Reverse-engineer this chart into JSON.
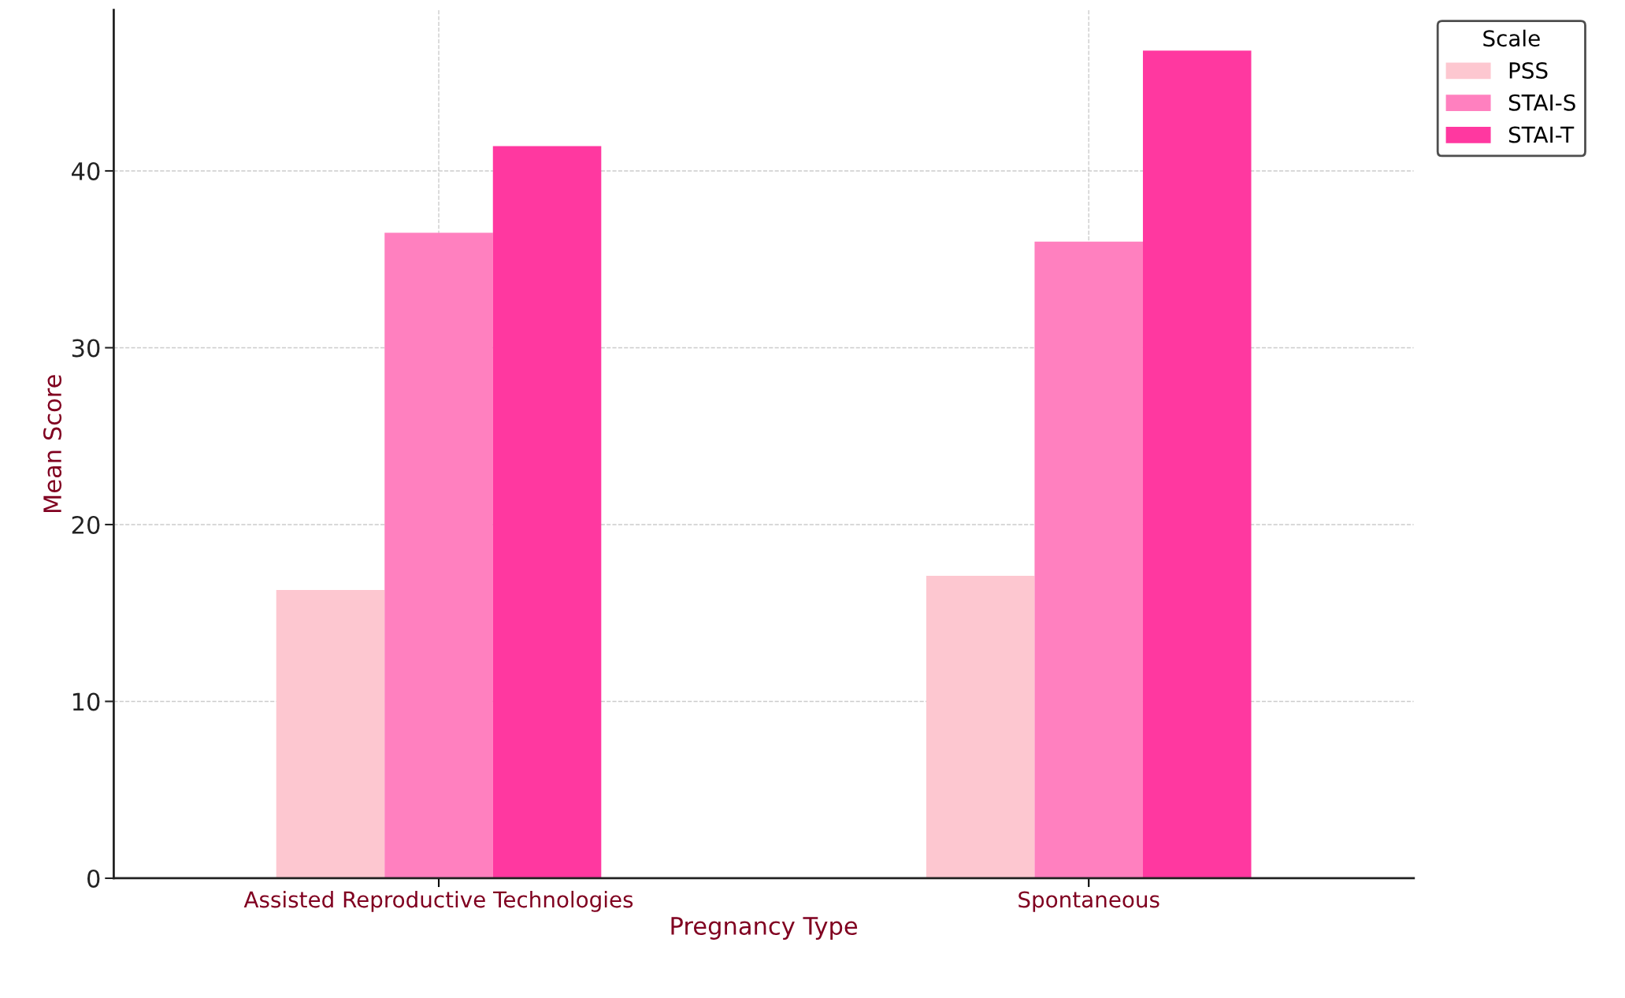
{
  "chart_data": {
    "type": "bar",
    "xlabel": "Pregnancy Type",
    "ylabel": "Mean Score",
    "legend_title": "Scale",
    "categories": [
      "Assisted Reproductive Technologies",
      "Spontaneous"
    ],
    "series": [
      {
        "name": "PSS",
        "color": "#fdc7d0",
        "values": [
          16.3,
          17.1
        ]
      },
      {
        "name": "STAI-S",
        "color": "#ff80bf",
        "values": [
          36.5,
          36.0
        ]
      },
      {
        "name": "STAI-T",
        "color": "#ff38a0",
        "values": [
          41.4,
          46.8
        ]
      }
    ],
    "ylim": [
      0,
      49.1
    ],
    "yticks": [
      0,
      10,
      20,
      30,
      40
    ],
    "grid": true,
    "legend": "top right"
  }
}
